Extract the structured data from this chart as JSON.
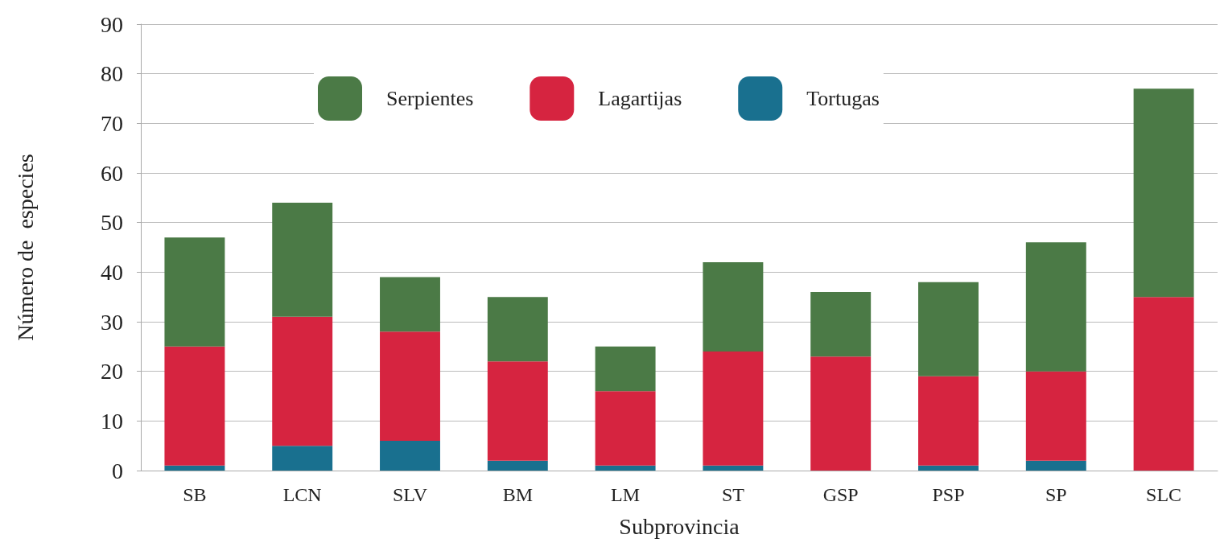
{
  "chart_data": {
    "type": "bar",
    "stacked": true,
    "xlabel": "Subprovincia",
    "ylabel": "Número de  especies",
    "categories": [
      "SB",
      "LCN",
      "SLV",
      "BM",
      "LM",
      "ST",
      "GSP",
      "PSP",
      "SP",
      "SLC"
    ],
    "series": [
      {
        "name": "Tortugas",
        "color": "#19708f",
        "values": [
          1,
          5,
          6,
          2,
          1,
          1,
          0,
          1,
          2,
          0
        ]
      },
      {
        "name": "Lagartijas",
        "color": "#d62440",
        "values": [
          24,
          26,
          22,
          20,
          15,
          23,
          23,
          18,
          18,
          35
        ]
      },
      {
        "name": "Serpientes",
        "color": "#4b7a46",
        "values": [
          22,
          23,
          11,
          13,
          9,
          18,
          13,
          19,
          26,
          42
        ]
      }
    ],
    "ylim": [
      0,
      90
    ],
    "yticks": [
      0,
      10,
      20,
      30,
      40,
      50,
      60,
      70,
      80,
      90
    ],
    "grid": "y",
    "legend": "top"
  }
}
